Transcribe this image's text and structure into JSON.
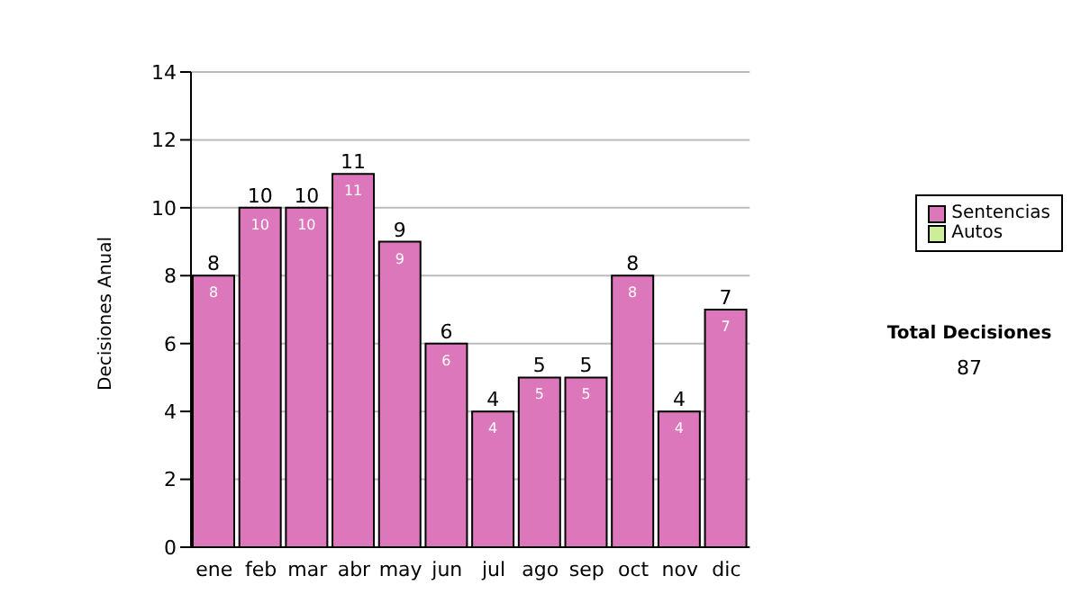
{
  "chart_data": {
    "type": "bar",
    "ylabel": "Decisiones Anual",
    "categories": [
      "ene",
      "feb",
      "mar",
      "abr",
      "may",
      "jun",
      "jul",
      "ago",
      "sep",
      "oct",
      "nov",
      "dic"
    ],
    "series": [
      {
        "name": "Sentencias",
        "color": "#dd77bb",
        "values": [
          8,
          10,
          10,
          11,
          9,
          6,
          4,
          5,
          5,
          8,
          4,
          7
        ]
      },
      {
        "name": "Autos",
        "color": "#ccee99",
        "values": [
          null,
          null,
          null,
          null,
          null,
          null,
          null,
          null,
          null,
          null,
          null,
          null
        ]
      }
    ],
    "stacked": true,
    "data_labels": true,
    "totals": [
      "8",
      "10",
      "10",
      "11",
      "9",
      "6",
      "4",
      "5",
      "5",
      "8",
      "4",
      "7"
    ],
    "ylim": [
      0,
      14
    ],
    "yticks": [
      0,
      2,
      4,
      6,
      8,
      10,
      12,
      14
    ],
    "grid": "y",
    "legend": "right",
    "annotations": [
      "Total Decisiones",
      "87"
    ]
  }
}
